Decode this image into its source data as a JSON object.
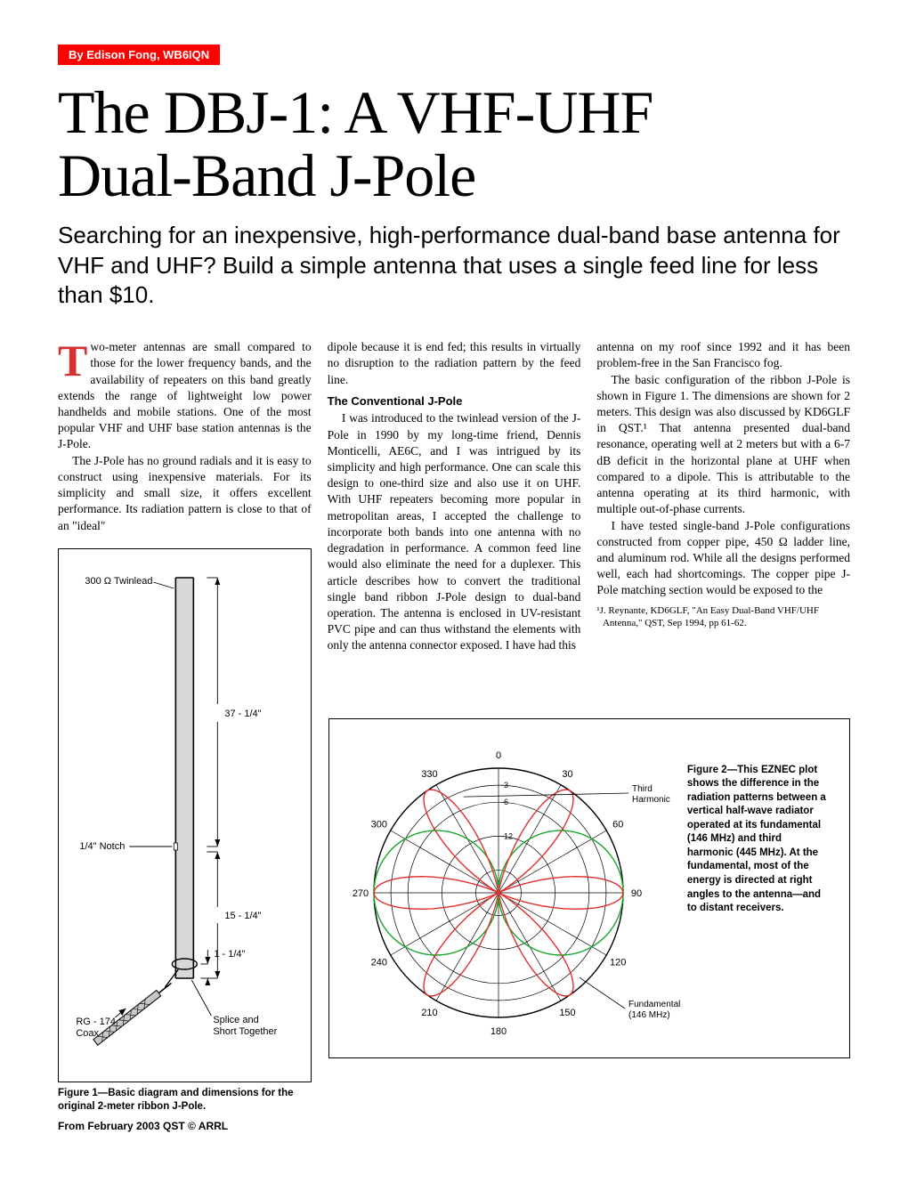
{
  "byline": "By Edison Fong, WB6IQN",
  "title_line1": "The DBJ-1: A VHF-UHF",
  "title_line2": "Dual-Band J-Pole",
  "subtitle": "Searching for an inexpensive, high-performance dual-band base antenna for VHF and UHF? Build a simple antenna that uses a single feed line for less than $10.",
  "dropcap_letter": "T",
  "column1": {
    "p1_after_cap": "wo-meter antennas are small compared to those for the lower frequency bands, and the availability of repeaters on this band greatly extends the range of lightweight low power handhelds and mobile stations. One of the most popular VHF and UHF base station antennas is the J-Pole.",
    "p2": "The J-Pole has no ground radials and it is easy to construct using inexpensive materials. For its simplicity and small size, it offers excellent performance. Its radiation pattern is close to that of an \"ideal\""
  },
  "column2": {
    "p1": "dipole because it is end fed; this results in virtually no disruption to the radiation pattern by the feed line.",
    "subhead": "The Conventional J-Pole",
    "p2": "I was introduced to the twinlead version of the J-Pole in 1990 by my long-time friend, Dennis Monticelli, AE6C, and I was intrigued by its simplicity and high performance. One can scale this design to one-third size and also use it on UHF. With UHF repeaters becoming more popular in metropolitan areas, I accepted the challenge to incorporate both bands into one antenna with no degradation in performance. A common feed line would also eliminate the need for a duplexer. This article describes how to convert the traditional single band ribbon J-Pole design to dual-band operation. The antenna is enclosed in UV-resistant PVC pipe and can thus withstand the elements with only the antenna connector exposed. I have had this"
  },
  "column3": {
    "p1": "antenna on my roof since 1992 and it has been problem-free in the San Francisco fog.",
    "p2": "The basic configuration of the ribbon J-Pole is shown in Figure 1. The dimensions are shown for 2 meters. This design was also discussed by KD6GLF in QST.¹ That antenna presented dual-band resonance, operating well at 2 meters but with a 6-7 dB deficit in the horizontal plane at UHF when compared to a dipole. This is attributable to the antenna operating at its third harmonic, with multiple out-of-phase currents.",
    "p3": "I have tested single-band J-Pole configurations constructed from copper pipe, 450 Ω ladder line, and aluminum rod. While all the designs performed well, each had shortcomings. The copper pipe J-Pole matching section would be exposed to the"
  },
  "footnote": "¹J. Reynante, KD6GLF, \"An Easy Dual-Band VHF/UHF Antenna,\" QST, Sep 1994, pp 61-62.",
  "figure1": {
    "label_twinlead": "300 Ω Twinlead",
    "dim_top": "37 - 1/4\"",
    "label_notch": "1/4\" Notch",
    "dim_mid": "15 - 1/4\"",
    "dim_bottom": "1 - 1/4\"",
    "label_coax": "RG - 174\nCoax",
    "label_splice": "Splice and\nShort Together",
    "caption": "Figure 1—Basic diagram and dimensions for the original 2-meter ribbon J-Pole.",
    "colors": {
      "band_fill": "#cfcfcf",
      "stroke": "#000000",
      "coax_fill": "#c0c0c0"
    }
  },
  "figure2": {
    "type": "polar-radiation-pattern",
    "angle_ticks": [
      0,
      30,
      60,
      90,
      120,
      150,
      180,
      210,
      240,
      270,
      300,
      330
    ],
    "radial_ticks": [
      -3,
      -6,
      -12
    ],
    "series": {
      "fundamental": {
        "label": "Fundamental\n(146 MHz)",
        "color": "#17a82c",
        "stroke_width": 1.4
      },
      "third_harmonic": {
        "label": "Third\nHarmonic",
        "color": "#e03030",
        "stroke_width": 1.4
      }
    },
    "grid_color": "#000000",
    "background": "#ffffff",
    "caption": "Figure 2—This EZNEC plot shows the difference in the radiation patterns between a  vertical half-wave radiator operated at its fundamental (146 MHz) and third harmonic (445 MHz). At the fundamental, most of the energy is directed at right angles to the antenna—and to distant receivers."
  },
  "footer": "From February 2003 QST © ARRL",
  "style": {
    "byline_bg": "#ff0000",
    "byline_fg": "#ffffff",
    "dropcap_color": "#d63031",
    "body_font_size": 13.5,
    "title_font_size": 68,
    "subtitle_font_size": 26
  }
}
